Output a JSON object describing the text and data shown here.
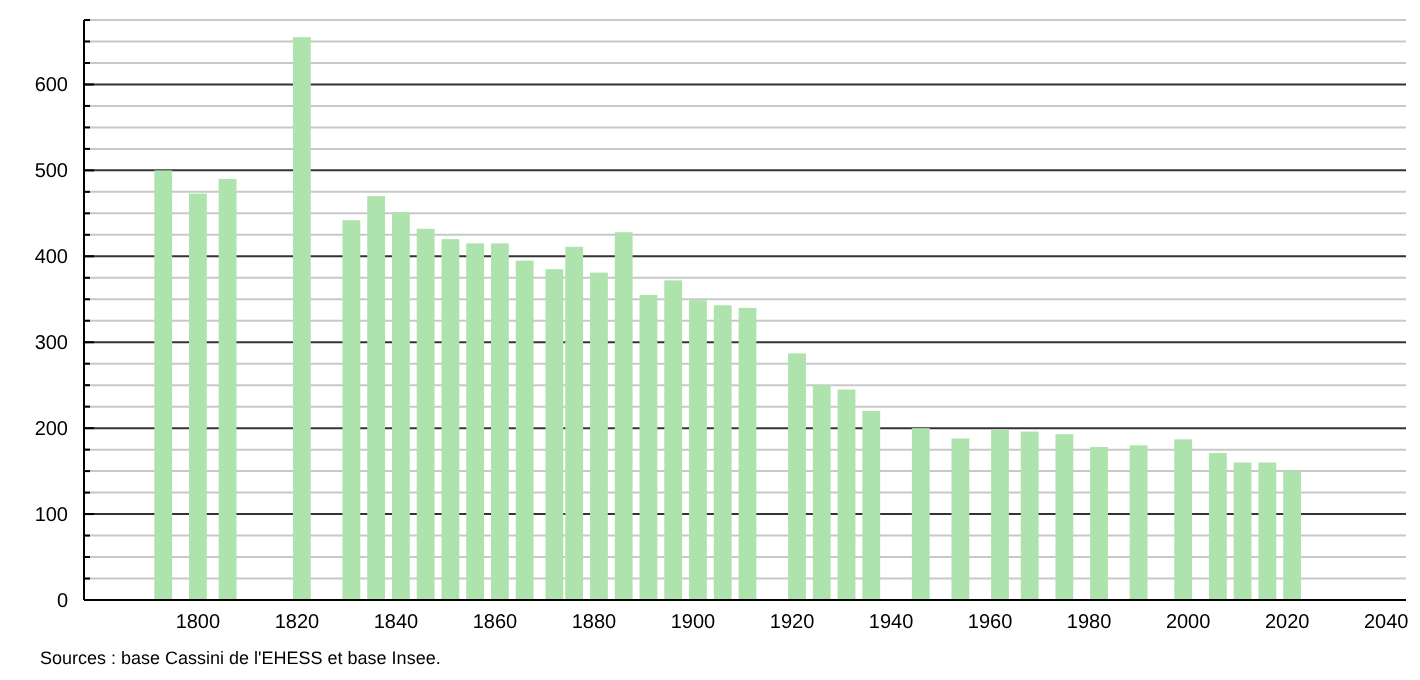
{
  "chart_data": {
    "type": "bar",
    "x": [
      1793,
      1800,
      1806,
      1821,
      1831,
      1836,
      1841,
      1846,
      1851,
      1856,
      1861,
      1866,
      1872,
      1876,
      1881,
      1886,
      1891,
      1896,
      1901,
      1906,
      1911,
      1921,
      1926,
      1931,
      1936,
      1946,
      1954,
      1962,
      1968,
      1975,
      1982,
      1990,
      1999,
      2006,
      2011,
      2016,
      2021
    ],
    "values": [
      500,
      473,
      490,
      655,
      442,
      470,
      451,
      432,
      420,
      415,
      415,
      395,
      385,
      411,
      381,
      428,
      355,
      372,
      349,
      343,
      340,
      287,
      250,
      245,
      220,
      200,
      188,
      198,
      196,
      193,
      178,
      180,
      187,
      171,
      160,
      160,
      150
    ],
    "color": "#aee3ae",
    "xlim": [
      1777,
      2044
    ],
    "xticks": [
      1800,
      1820,
      1840,
      1860,
      1880,
      1900,
      1920,
      1940,
      1960,
      1980,
      2000,
      2020,
      2040
    ],
    "ylim": [
      0,
      675
    ],
    "yticks": [
      0,
      {
        "value": 25,
        "label": null
      },
      {
        "value": 50,
        "label": null
      },
      {
        "value": 75,
        "label": null
      },
      100,
      {
        "value": 125,
        "label": null
      },
      {
        "value": 150,
        "label": null
      },
      {
        "value": 175,
        "label": null
      },
      200,
      {
        "value": 225,
        "label": null
      },
      {
        "value": 250,
        "label": null
      },
      {
        "value": 275,
        "label": null
      },
      300,
      {
        "value": 325,
        "label": null
      },
      {
        "value": 350,
        "label": null
      },
      {
        "value": 375,
        "label": null
      },
      400,
      {
        "value": 425,
        "label": null
      },
      {
        "value": 450,
        "label": null
      },
      {
        "value": 475,
        "label": null
      },
      500,
      {
        "value": 525,
        "label": null
      },
      {
        "value": 550,
        "label": null
      },
      {
        "value": 575,
        "label": null
      },
      600,
      {
        "value": 625,
        "label": null
      },
      {
        "value": 650,
        "label": null
      },
      {
        "value": 675,
        "label": null
      }
    ],
    "grid": "y",
    "annotations": [
      "Sources : base Cassini de l'EHESS et base Insee."
    ]
  }
}
